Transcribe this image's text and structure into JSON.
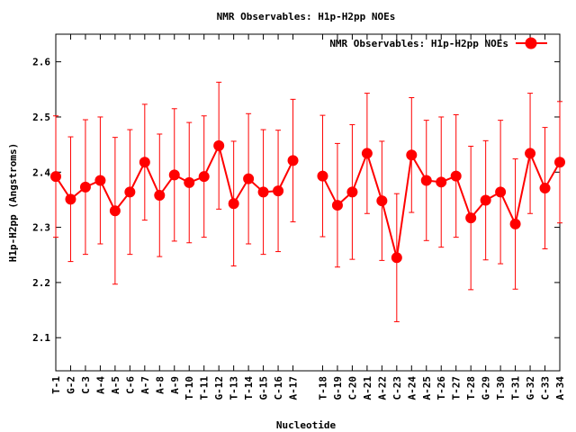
{
  "chart_data": {
    "type": "line",
    "title": "NMR Observables: H1p-H2pp NOEs",
    "xlabel": "Nucleotide",
    "ylabel": "H1p-H2pp (Angstroms)",
    "ylim": [
      2.04,
      2.65
    ],
    "yticks": [
      "2.1",
      "2.2",
      "2.3",
      "2.4",
      "2.5",
      "2.6"
    ],
    "grid": false,
    "legend_position": "top-right",
    "series_color": "#ff0000",
    "series": [
      {
        "name": "NMR Observables: H1p-H2pp NOEs",
        "segments": [
          {
            "categories": [
              "T-1",
              "G-2",
              "C-3",
              "A-4",
              "A-5",
              "C-6",
              "A-7",
              "A-8",
              "A-9",
              "T-10",
              "T-11",
              "G-12",
              "T-13",
              "T-14",
              "G-15",
              "C-16",
              "A-17"
            ],
            "values": [
              2.392,
              2.351,
              2.373,
              2.385,
              2.33,
              2.364,
              2.418,
              2.358,
              2.395,
              2.381,
              2.392,
              2.448,
              2.343,
              2.388,
              2.364,
              2.366,
              2.421
            ],
            "errors": [
              0.11,
              0.113,
              0.122,
              0.115,
              0.133,
              0.113,
              0.105,
              0.111,
              0.12,
              0.109,
              0.11,
              0.115,
              0.113,
              0.118,
              0.113,
              0.11,
              0.111
            ]
          },
          {
            "categories": [
              "T-18",
              "G-19",
              "C-20",
              "A-21",
              "A-22",
              "C-23",
              "A-24",
              "A-25",
              "T-26",
              "T-27",
              "T-28",
              "G-29",
              "T-30",
              "T-31",
              "G-32",
              "C-33",
              "A-34"
            ],
            "values": [
              2.393,
              2.34,
              2.364,
              2.434,
              2.348,
              2.245,
              2.431,
              2.385,
              2.382,
              2.393,
              2.317,
              2.349,
              2.364,
              2.306,
              2.434,
              2.371,
              2.418
            ],
            "errors": [
              0.11,
              0.112,
              0.122,
              0.109,
              0.108,
              0.116,
              0.104,
              0.109,
              0.118,
              0.111,
              0.13,
              0.108,
              0.13,
              0.118,
              0.109,
              0.11,
              0.11
            ]
          }
        ]
      }
    ]
  }
}
